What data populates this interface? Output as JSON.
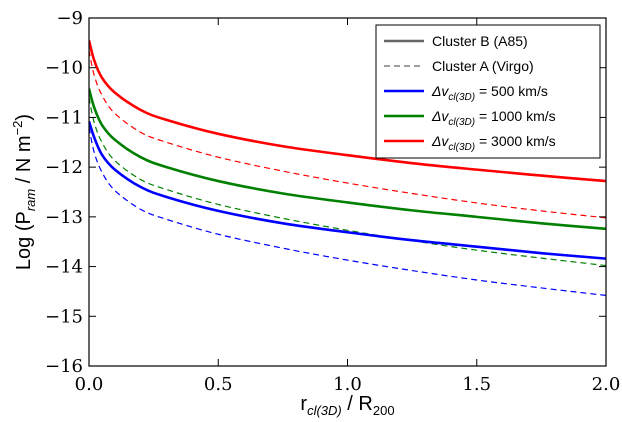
{
  "chart_data": {
    "type": "line",
    "xlabel": "r_cl(3D) / R_200",
    "ylabel": "Log (P_ram / N m^-2)",
    "xlim": [
      0.0,
      2.0
    ],
    "ylim": [
      -16,
      -9
    ],
    "grid": false,
    "x_ticks": [
      "0.0",
      "0.5",
      "1.0",
      "1.5",
      "2.0"
    ],
    "y_ticks": [
      "-16",
      "-15",
      "-14",
      "-13",
      "-12",
      "-11",
      "-10",
      "-9"
    ],
    "legend_placement": "top-right",
    "legend": [
      {
        "label": "Cluster B (A85)",
        "color": "#666666",
        "style": "solid"
      },
      {
        "label": "Cluster A (Virgo)",
        "color": "#666666",
        "style": "dashed"
      },
      {
        "label": "Δv_cl(3D) = 500 km/s",
        "color": "#0000ff",
        "style": "solid"
      },
      {
        "label": "Δv_cl(3D) = 1000 km/s",
        "color": "#008000",
        "style": "solid"
      },
      {
        "label": "Δv_cl(3D) = 3000 km/s",
        "color": "#ff0000",
        "style": "solid"
      }
    ],
    "series": [
      {
        "cluster": "B",
        "velocity": 3000,
        "color": "#ff0000",
        "style": "solid",
        "x": [
          0.0,
          0.02,
          0.05,
          0.1,
          0.2,
          0.3,
          0.5,
          0.75,
          1.0,
          1.25,
          1.5,
          1.75,
          2.0
        ],
        "y": [
          -9.45,
          -9.85,
          -10.2,
          -10.5,
          -10.85,
          -11.05,
          -11.33,
          -11.58,
          -11.76,
          -11.92,
          -12.05,
          -12.17,
          -12.28
        ]
      },
      {
        "cluster": "A",
        "velocity": 3000,
        "color": "#ff0000",
        "style": "dashed",
        "x": [
          0.0,
          0.02,
          0.05,
          0.1,
          0.2,
          0.3,
          0.5,
          0.75,
          1.0,
          1.25,
          1.5,
          1.75,
          2.0
        ],
        "y": [
          -9.65,
          -10.15,
          -10.55,
          -10.92,
          -11.3,
          -11.5,
          -11.8,
          -12.08,
          -12.32,
          -12.53,
          -12.72,
          -12.88,
          -13.02
        ]
      },
      {
        "cluster": "B",
        "velocity": 1000,
        "color": "#008000",
        "style": "solid",
        "x": [
          0.0,
          0.02,
          0.05,
          0.1,
          0.2,
          0.3,
          0.5,
          0.75,
          1.0,
          1.25,
          1.5,
          1.75,
          2.0
        ],
        "y": [
          -10.42,
          -10.8,
          -11.15,
          -11.45,
          -11.8,
          -12.0,
          -12.28,
          -12.53,
          -12.71,
          -12.87,
          -13.0,
          -13.13,
          -13.24
        ]
      },
      {
        "cluster": "A",
        "velocity": 1000,
        "color": "#008000",
        "style": "dashed",
        "x": [
          0.0,
          0.02,
          0.05,
          0.1,
          0.2,
          0.3,
          0.5,
          0.75,
          1.0,
          1.25,
          1.5,
          1.75,
          2.0
        ],
        "y": [
          -10.6,
          -11.1,
          -11.5,
          -11.87,
          -12.25,
          -12.45,
          -12.75,
          -13.03,
          -13.27,
          -13.48,
          -13.67,
          -13.83,
          -13.98
        ]
      },
      {
        "cluster": "B",
        "velocity": 500,
        "color": "#0000ff",
        "style": "solid",
        "x": [
          0.0,
          0.02,
          0.05,
          0.1,
          0.2,
          0.3,
          0.5,
          0.75,
          1.0,
          1.25,
          1.5,
          1.75,
          2.0
        ],
        "y": [
          -11.08,
          -11.4,
          -11.75,
          -12.05,
          -12.4,
          -12.6,
          -12.88,
          -13.13,
          -13.31,
          -13.47,
          -13.6,
          -13.73,
          -13.84
        ]
      },
      {
        "cluster": "A",
        "velocity": 500,
        "color": "#0000ff",
        "style": "dashed",
        "x": [
          0.0,
          0.02,
          0.05,
          0.1,
          0.2,
          0.3,
          0.5,
          0.75,
          1.0,
          1.25,
          1.5,
          1.75,
          2.0
        ],
        "y": [
          -11.2,
          -11.7,
          -12.1,
          -12.47,
          -12.85,
          -13.05,
          -13.35,
          -13.63,
          -13.87,
          -14.08,
          -14.27,
          -14.43,
          -14.58
        ]
      }
    ]
  }
}
